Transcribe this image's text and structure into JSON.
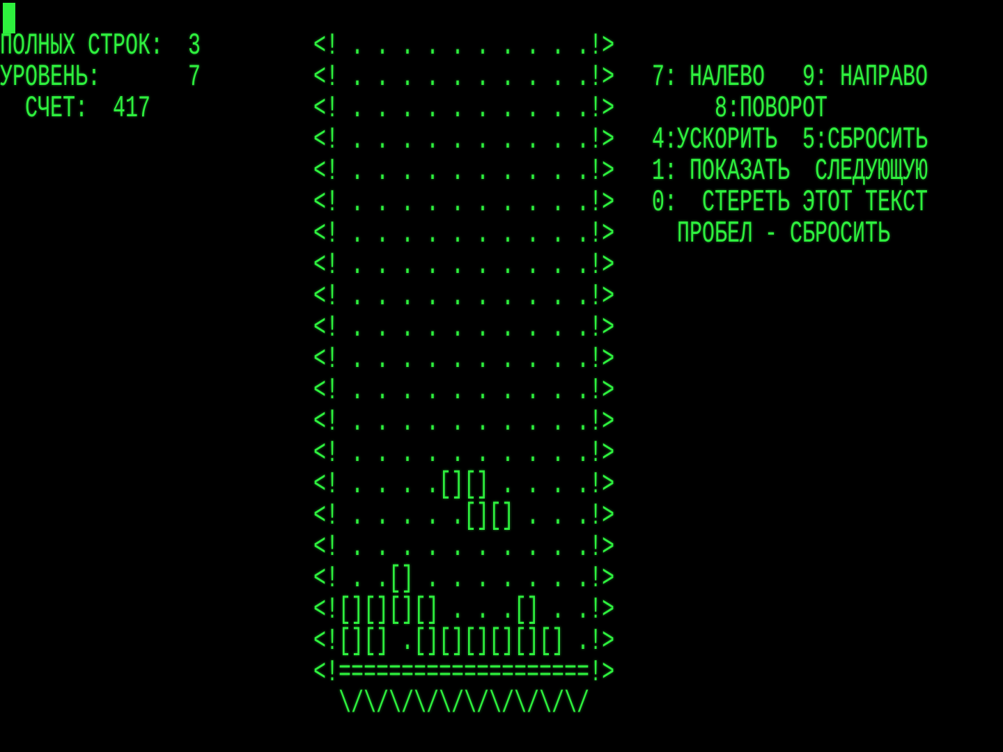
{
  "status": {
    "lines_label": "ПОЛНЫХ СТРОК:",
    "lines_value": "3",
    "level_label": "УРОВЕНЬ:",
    "level_value": "7",
    "score_label": "СЧЕТ:",
    "score_value": "417"
  },
  "help": {
    "left": "7: НАЛЕВО",
    "right": "9: НАПРАВО",
    "rotate": "8:ПОВОРОТ",
    "speed": "4:УСКОРИТЬ",
    "drop": "5:СБРОСИТЬ",
    "show_next": "1: ПОКАЗАТЬ",
    "show_next_2": "СЛЕДУЮЩУЮ",
    "erase": "0:  СТЕРЕТЬ ЭТОТ ТЕКСТ",
    "space": "ПРОБЕЛ - СБРОСИТЬ"
  },
  "well": {
    "rows": [
      "<! . . . . . . . . . .!>",
      "<! . . . . . . . . . .!>",
      "<! . . . . . . . . . .!>",
      "<! . . . . . . . . . .!>",
      "<! . . . . . . . . . .!>",
      "<! . . . . . . . . . .!>",
      "<! . . . . . . . . . .!>",
      "<! . . . . . . . . . .!>",
      "<! . . . . . . . . . .!>",
      "<! . . . . . . . . . .!>",
      "<! . . . . . . . . . .!>",
      "<! . . . . . . . . . .!>",
      "<! . . . . . . . . . .!>",
      "<! . . . . . . . . . .!>",
      "<! . . . .[][] . . . .!>",
      "<! . . . . .[][] . . .!>",
      "<! . . . . . . . . . .!>",
      "<! . .[] . . . . . . .!>",
      "<![][][][] . . .[] . .!>",
      "<![][] .[][][][][][] .!>"
    ],
    "floor": "<!====================!>",
    "base": "\\/\\/\\/\\/\\/\\/\\/\\/\\/\\/"
  },
  "colors": {
    "phosphor": "#2ef03e",
    "background": "#000000"
  }
}
